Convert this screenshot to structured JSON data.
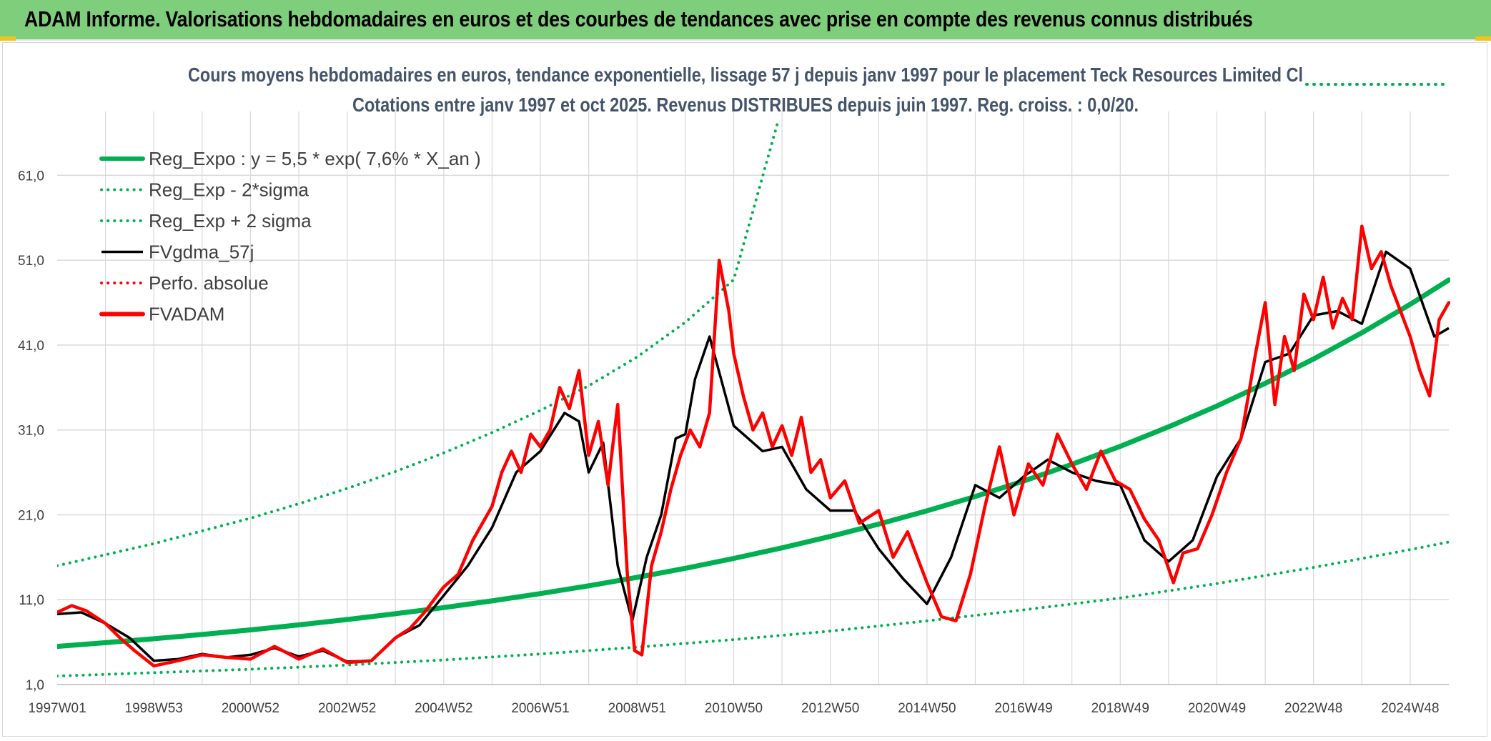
{
  "header": {
    "title": "ADAM Informe. Valorisations hebdomadaires en euros et des courbes de tendances avec prise en compte des revenus connus distribués"
  },
  "chart_data": {
    "type": "line",
    "title": "Cours moyens hebdomadaires en euros, tendance exponentielle, lissage 57 j depuis janv 1997 pour le placement Teck Resources Limited Cl",
    "subtitle": "Cotations entre janv 1997 et oct 2025. Revenus DISTRIBUES depuis juin 1997. Reg. croiss. : 0,0/20.",
    "xlabel": "",
    "ylabel": "",
    "xlim": [
      1997.0,
      2025.8
    ],
    "ylim": [
      1.0,
      66.0
    ],
    "y_ticks": [
      "1,0",
      "11,0",
      "21,0",
      "31,0",
      "41,0",
      "51,0",
      "61,0"
    ],
    "y_tick_values": [
      1,
      11,
      21,
      31,
      41,
      51,
      61
    ],
    "x_tick_labels": [
      "1997W01",
      "1998W53",
      "2000W52",
      "2002W52",
      "2004W52",
      "2006W51",
      "2008W51",
      "2010W50",
      "2012W50",
      "2014W50",
      "2016W49",
      "2018W49",
      "2020W49",
      "2022W48",
      "2024W48"
    ],
    "x_tick_values": [
      1997.0,
      1999.0,
      2001.0,
      2003.0,
      2005.0,
      2007.0,
      2009.0,
      2011.0,
      2013.0,
      2015.0,
      2017.0,
      2019.0,
      2021.0,
      2023.0,
      2025.0
    ],
    "grid": true,
    "legend_position": "top-left",
    "colors": {
      "reg_green": "#00b050",
      "black": "#000000",
      "red": "#ff0000",
      "title": "#44546a",
      "grid": "#d9d9d9"
    },
    "series": [
      {
        "name": "Reg_Expo : y = 5,5 * exp( 7,6% *  X_an )",
        "style": "solid-thick",
        "color": "#00b050",
        "x": [
          1997.0,
          1998.0,
          1999.0,
          2000.0,
          2001.0,
          2002.0,
          2003.0,
          2004.0,
          2005.0,
          2006.0,
          2007.0,
          2008.0,
          2009.0,
          2010.0,
          2011.0,
          2012.0,
          2013.0,
          2014.0,
          2015.0,
          2016.0,
          2017.0,
          2018.0,
          2019.0,
          2020.0,
          2021.0,
          2022.0,
          2023.0,
          2024.0,
          2025.0,
          2025.8
        ],
        "values": [
          5.5,
          5.93,
          6.4,
          6.9,
          7.44,
          8.03,
          8.66,
          9.34,
          10.07,
          10.86,
          11.72,
          12.64,
          13.63,
          14.7,
          15.86,
          17.11,
          18.45,
          19.9,
          21.47,
          23.16,
          24.98,
          26.95,
          29.07,
          31.36,
          33.82,
          36.49,
          39.36,
          42.45,
          45.8,
          48.67
        ]
      },
      {
        "name": "Reg_Exp - 2*sigma",
        "style": "dotted",
        "color": "#00b050",
        "x": [
          1997.0,
          1999.0,
          2001.0,
          2003.0,
          2005.0,
          2007.0,
          2009.0,
          2011.0,
          2013.0,
          2015.0,
          2017.0,
          2019.0,
          2021.0,
          2023.0,
          2025.0,
          2025.8
        ],
        "values": [
          2.0,
          2.4,
          2.8,
          3.3,
          3.9,
          4.6,
          5.4,
          6.3,
          7.3,
          8.5,
          9.8,
          11.2,
          12.9,
          14.8,
          16.9,
          17.8
        ]
      },
      {
        "name": "Reg_Exp + 2 sigma",
        "style": "dotted",
        "color": "#00b050",
        "x": [
          1997.0,
          1998.0,
          1999.0,
          2000.0,
          2001.0,
          2002.0,
          2003.0,
          2004.0,
          2005.0,
          2006.0,
          2007.0,
          2008.0,
          2009.0,
          2010.0,
          2011.0,
          2011.9
        ],
        "values": [
          15.0,
          16.3,
          17.6,
          19.1,
          20.6,
          22.3,
          24.1,
          26.1,
          28.3,
          30.7,
          33.3,
          36.2,
          39.6,
          43.7,
          48.7,
          67.0
        ]
      },
      {
        "name": "FVgdma_57j",
        "style": "solid",
        "color": "#000000",
        "x": [
          1997.0,
          1997.5,
          1998.0,
          1998.5,
          1999.0,
          1999.5,
          2000.0,
          2000.5,
          2001.0,
          2001.5,
          2002.0,
          2002.5,
          2003.0,
          2003.5,
          2004.0,
          2004.5,
          2005.0,
          2005.5,
          2006.0,
          2006.5,
          2007.0,
          2007.5,
          2007.8,
          2008.0,
          2008.3,
          2008.6,
          2008.9,
          2009.2,
          2009.5,
          2009.8,
          2010.0,
          2010.2,
          2010.5,
          2011.0,
          2011.3,
          2011.6,
          2012.0,
          2012.5,
          2013.0,
          2013.5,
          2014.0,
          2014.5,
          2015.0,
          2015.5,
          2016.0,
          2016.5,
          2017.0,
          2017.5,
          2018.0,
          2018.5,
          2019.0,
          2019.5,
          2020.0,
          2020.5,
          2021.0,
          2021.5,
          2022.0,
          2022.5,
          2023.0,
          2023.5,
          2024.0,
          2024.5,
          2025.0,
          2025.5,
          2025.8
        ],
        "values": [
          9.3,
          9.5,
          8.2,
          6.5,
          3.8,
          4.0,
          4.6,
          4.2,
          4.5,
          5.3,
          4.3,
          5.0,
          3.7,
          3.8,
          6.5,
          8.0,
          11.5,
          15.0,
          19.5,
          26.0,
          28.5,
          33.0,
          32.0,
          26.0,
          29.5,
          15.0,
          8.5,
          16.0,
          21.0,
          30.0,
          30.5,
          37.0,
          42.0,
          31.5,
          30.0,
          28.5,
          29.0,
          24.0,
          21.5,
          21.5,
          17.0,
          13.5,
          10.5,
          16.0,
          24.5,
          23.0,
          25.5,
          27.5,
          26.0,
          25.0,
          24.5,
          18.0,
          15.5,
          18.0,
          25.5,
          30.0,
          39.0,
          40.0,
          44.5,
          45.0,
          43.5,
          52.0,
          50.0,
          42.0,
          43.0
        ]
      },
      {
        "name": "Perfo. absolue",
        "style": "dotted",
        "color": "#ff0000",
        "x": [],
        "values": []
      },
      {
        "name": "FVADAM",
        "style": "solid-thick",
        "color": "#ff0000",
        "x": [
          1997.0,
          1997.3,
          1997.6,
          1998.0,
          1998.3,
          1998.6,
          1999.0,
          1999.5,
          2000.0,
          2000.5,
          2001.0,
          2001.5,
          2002.0,
          2002.5,
          2003.0,
          2003.5,
          2004.0,
          2004.3,
          2004.6,
          2005.0,
          2005.3,
          2005.6,
          2006.0,
          2006.2,
          2006.4,
          2006.6,
          2006.8,
          2007.0,
          2007.2,
          2007.4,
          2007.6,
          2007.8,
          2008.0,
          2008.2,
          2008.4,
          2008.6,
          2008.8,
          2008.95,
          2009.1,
          2009.3,
          2009.5,
          2009.7,
          2009.9,
          2010.1,
          2010.3,
          2010.5,
          2010.7,
          2010.9,
          2011.0,
          2011.2,
          2011.4,
          2011.6,
          2011.8,
          2012.0,
          2012.2,
          2012.4,
          2012.6,
          2012.8,
          2013.0,
          2013.3,
          2013.6,
          2014.0,
          2014.3,
          2014.6,
          2015.0,
          2015.3,
          2015.6,
          2015.9,
          2016.2,
          2016.5,
          2016.8,
          2017.1,
          2017.4,
          2017.7,
          2018.0,
          2018.3,
          2018.6,
          2018.9,
          2019.2,
          2019.5,
          2019.8,
          2020.1,
          2020.3,
          2020.6,
          2020.9,
          2021.2,
          2021.5,
          2021.8,
          2022.0,
          2022.2,
          2022.4,
          2022.6,
          2022.8,
          2023.0,
          2023.2,
          2023.4,
          2023.6,
          2023.8,
          2024.0,
          2024.2,
          2024.4,
          2024.6,
          2024.8,
          2025.0,
          2025.2,
          2025.4,
          2025.6,
          2025.8
        ],
        "values": [
          9.5,
          10.3,
          9.7,
          8.2,
          6.5,
          5.0,
          3.2,
          3.8,
          4.5,
          4.2,
          4.0,
          5.5,
          4.0,
          5.2,
          3.6,
          3.8,
          6.5,
          7.6,
          9.5,
          12.5,
          14.0,
          18.0,
          22.0,
          26.0,
          28.5,
          26.0,
          30.5,
          29.0,
          31.0,
          36.0,
          33.5,
          38.0,
          28.0,
          32.0,
          24.5,
          34.0,
          14.0,
          5.0,
          4.5,
          15.0,
          19.0,
          24.0,
          28.0,
          31.0,
          29.0,
          33.0,
          51.0,
          45.0,
          40.0,
          35.0,
          31.0,
          33.0,
          29.0,
          31.5,
          28.0,
          32.5,
          26.0,
          27.5,
          23.0,
          25.0,
          20.0,
          21.5,
          16.0,
          19.0,
          13.0,
          9.0,
          8.5,
          14.0,
          22.0,
          29.0,
          21.0,
          27.0,
          24.5,
          30.5,
          27.0,
          24.0,
          28.5,
          25.0,
          24.0,
          20.5,
          18.0,
          13.0,
          16.5,
          17.0,
          21.0,
          26.0,
          30.0,
          40.0,
          46.0,
          34.0,
          42.0,
          38.0,
          47.0,
          44.0,
          49.0,
          43.0,
          46.5,
          44.0,
          55.0,
          50.0,
          52.0,
          48.0,
          45.0,
          42.0,
          38.0,
          35.0,
          44.0,
          46.0
        ]
      }
    ]
  }
}
